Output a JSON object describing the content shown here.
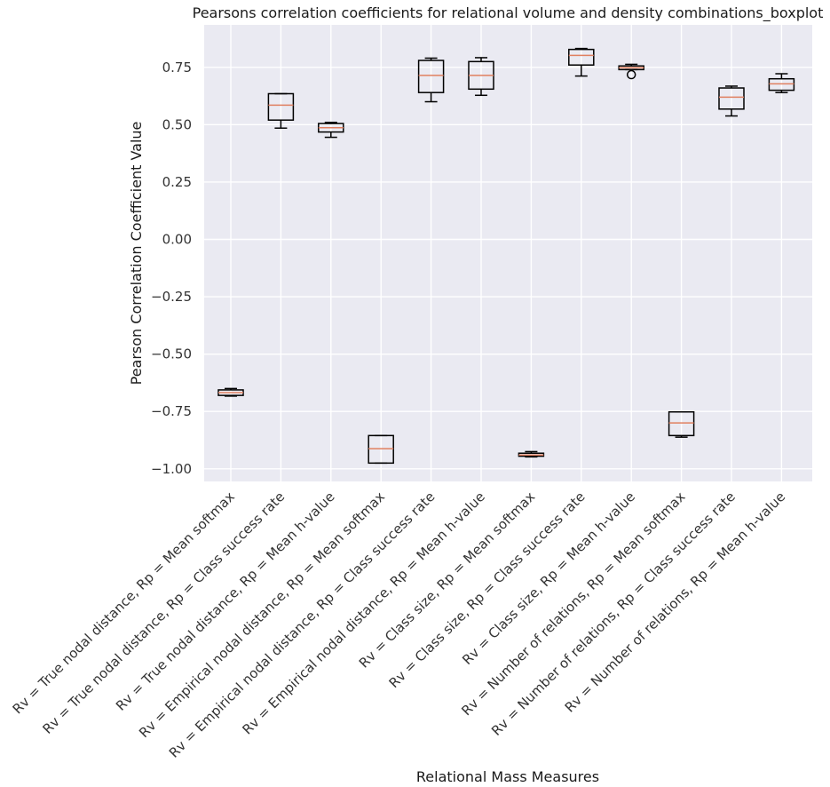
{
  "chart_data": {
    "type": "boxplot",
    "title": "Pearsons correlation coefficients for relational volume and density combinations_boxplot",
    "xlabel": "Relational Mass Measures",
    "ylabel": "Pearson Correlation Coefficient Value",
    "ylim": [
      -1.055,
      0.935
    ],
    "yticks": [
      -1.0,
      -0.75,
      -0.5,
      -0.25,
      0.0,
      0.25,
      0.5,
      0.75
    ],
    "ytick_labels": [
      "−1.00",
      "−0.75",
      "−0.50",
      "−0.25",
      "0.00",
      "0.25",
      "0.50",
      "0.75"
    ],
    "grid": true,
    "categories": [
      "Rv = True nodal distance, Rp = Mean softmax",
      "Rv = True nodal distance, Rp = Class success rate",
      "Rv = True nodal distance, Rp = Mean h-value",
      "Rv = Empirical nodal distance, Rp = Mean softmax",
      "Rv = Empirical nodal distance, Rp = Class success rate",
      "Rv = Empirical nodal distance, Rp = Mean h-value",
      "Rv = Class size, Rp = Mean softmax",
      "Rv = Class size, Rp = Class success rate",
      "Rv = Class size, Rp = Mean h-value",
      "Rv = Number of relations, Rp = Mean softmax",
      "Rv = Number of relations, Rp = Class success rate",
      "Rv = Number of relations, Rp = Mean h-value"
    ],
    "boxes": [
      {
        "whislo": -0.683,
        "q1": -0.68,
        "med": -0.668,
        "q3": -0.656,
        "whishi": -0.65,
        "fliers": []
      },
      {
        "whislo": 0.485,
        "q1": 0.52,
        "med": 0.585,
        "q3": 0.635,
        "whishi": 0.635,
        "fliers": []
      },
      {
        "whislo": 0.445,
        "q1": 0.468,
        "med": 0.487,
        "q3": 0.505,
        "whishi": 0.51,
        "fliers": []
      },
      {
        "whislo": -0.975,
        "q1": -0.975,
        "med": -0.912,
        "q3": -0.855,
        "whishi": -0.855,
        "fliers": []
      },
      {
        "whislo": 0.6,
        "q1": 0.64,
        "med": 0.715,
        "q3": 0.78,
        "whishi": 0.79,
        "fliers": []
      },
      {
        "whislo": 0.628,
        "q1": 0.655,
        "med": 0.715,
        "q3": 0.775,
        "whishi": 0.792,
        "fliers": []
      },
      {
        "whislo": -0.948,
        "q1": -0.945,
        "med": -0.94,
        "q3": -0.932,
        "whishi": -0.925,
        "fliers": []
      },
      {
        "whislo": 0.712,
        "q1": 0.76,
        "med": 0.802,
        "q3": 0.828,
        "whishi": 0.832,
        "fliers": []
      },
      {
        "whislo": 0.74,
        "q1": 0.74,
        "med": 0.748,
        "q3": 0.756,
        "whishi": 0.763,
        "fliers": [
          0.718
        ]
      },
      {
        "whislo": -0.862,
        "q1": -0.855,
        "med": -0.8,
        "q3": -0.752,
        "whishi": -0.752,
        "fliers": []
      },
      {
        "whislo": 0.538,
        "q1": 0.568,
        "med": 0.62,
        "q3": 0.66,
        "whishi": 0.668,
        "fliers": []
      },
      {
        "whislo": 0.64,
        "q1": 0.65,
        "med": 0.678,
        "q3": 0.7,
        "whishi": 0.722,
        "fliers": []
      }
    ],
    "colors": {
      "background": "#eaeaf2",
      "grid": "#ffffff",
      "box": "#000000",
      "median": "#e08060"
    }
  }
}
